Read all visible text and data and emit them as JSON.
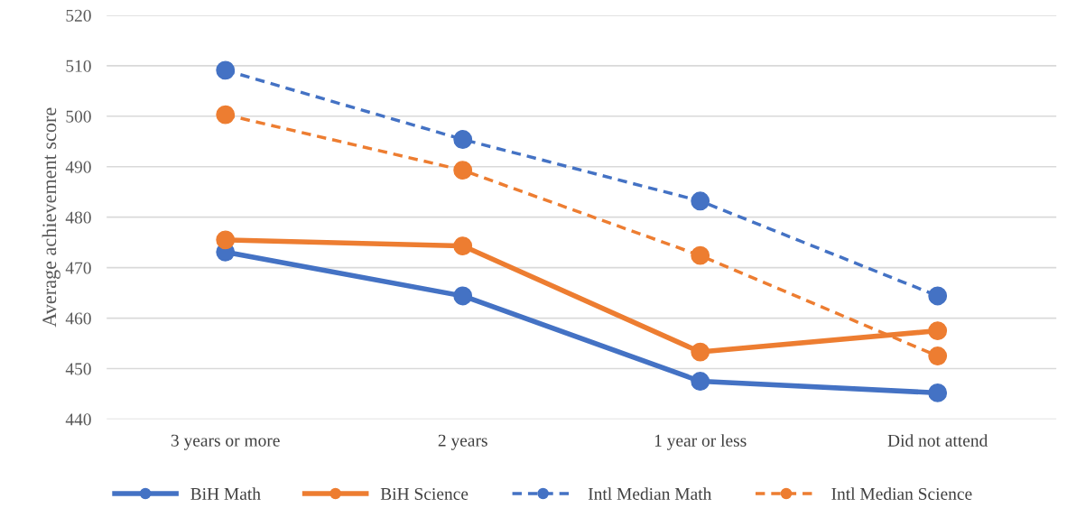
{
  "chart_data": {
    "type": "line",
    "ylabel": "Average achievement score",
    "categories": [
      "3 years or more",
      "2 years",
      "1 year or less",
      "Did not attend"
    ],
    "series": [
      {
        "name": "BiH Math",
        "color": "#4472c4",
        "line_style": "solid",
        "values": [
          473.1,
          464.4,
          447.5,
          445.2
        ]
      },
      {
        "name": "BiH Science",
        "color": "#ed7d31",
        "line_style": "solid",
        "values": [
          475.5,
          474.3,
          453.3,
          457.5
        ]
      },
      {
        "name": "Intl Median Math",
        "color": "#4472c4",
        "line_style": "dashed",
        "values": [
          509.1,
          495.4,
          483.2,
          464.4
        ]
      },
      {
        "name": "Intl Median Science",
        "color": "#ed7d31",
        "line_style": "dashed",
        "values": [
          500.3,
          489.3,
          472.4,
          452.5
        ]
      }
    ],
    "ylim": [
      440,
      520
    ],
    "yticks": [
      440,
      450,
      460,
      470,
      480,
      490,
      500,
      510,
      520
    ],
    "grid": "y",
    "legend": "bottom",
    "marker": "circle"
  }
}
